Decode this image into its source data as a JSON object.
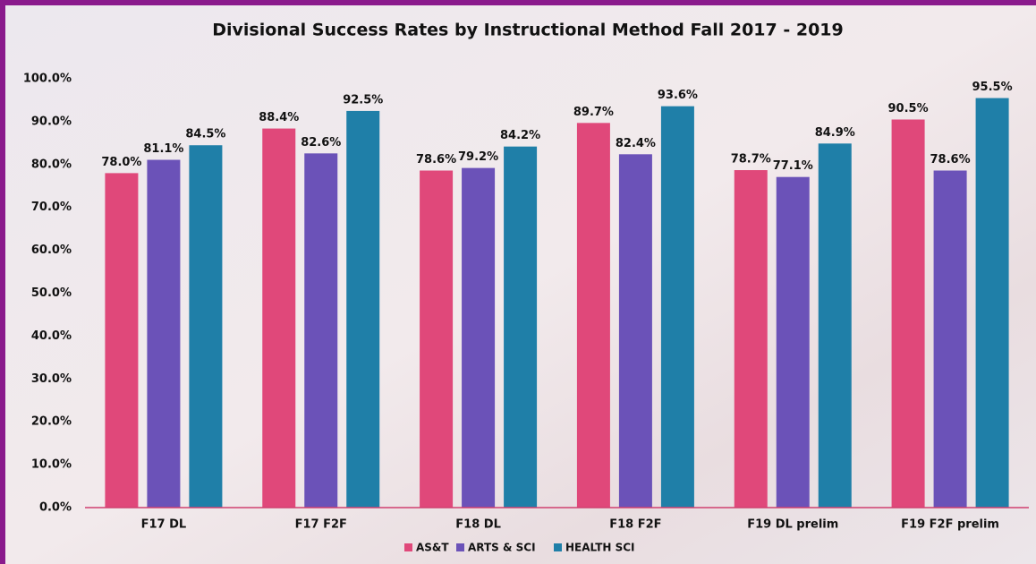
{
  "chart_data": {
    "type": "bar",
    "title": "Divisional Success Rates by Instructional Method Fall 2017 - 2019",
    "categories": [
      "F17 DL",
      "F17 F2F",
      "F18 DL",
      "F18 F2F",
      "F19 DL prelim",
      "F19 F2F prelim"
    ],
    "series": [
      {
        "name": "AS&T",
        "color": "#e0487a",
        "values": [
          78.0,
          88.4,
          78.6,
          89.7,
          78.7,
          90.5
        ],
        "value_labels": [
          "78.0%",
          "88.4%",
          "78.6%",
          "89.7%",
          "78.7%",
          "90.5%"
        ]
      },
      {
        "name": "ARTS & SCI",
        "color": "#6b52b8",
        "values": [
          81.1,
          82.6,
          79.2,
          82.4,
          77.1,
          78.6
        ],
        "value_labels": [
          "81.1%",
          "82.6%",
          "79.2%",
          "82.4%",
          "77.1%",
          "78.6%"
        ]
      },
      {
        "name": "HEALTH SCI",
        "color": "#1f7fa8",
        "values": [
          84.5,
          92.5,
          84.2,
          93.6,
          84.9,
          95.5
        ],
        "value_labels": [
          "84.5%",
          "92.5%",
          "84.2%",
          "93.6%",
          "84.9%",
          "95.5%"
        ]
      }
    ],
    "ylim": [
      0,
      100
    ],
    "yticks": [
      {
        "value": 0,
        "label": "0.0%"
      },
      {
        "value": 10,
        "label": "10.0%"
      },
      {
        "value": 20,
        "label": "20.0%"
      },
      {
        "value": 30,
        "label": "30.0%"
      },
      {
        "value": 40,
        "label": "40.0%"
      },
      {
        "value": 50,
        "label": "50.0%"
      },
      {
        "value": 60,
        "label": "60.0%"
      },
      {
        "value": 70,
        "label": "70.0%"
      },
      {
        "value": 80,
        "label": "80.0%"
      },
      {
        "value": 90,
        "label": "90.0%"
      },
      {
        "value": 100,
        "label": "100.0%"
      }
    ],
    "legend": "bottom"
  }
}
